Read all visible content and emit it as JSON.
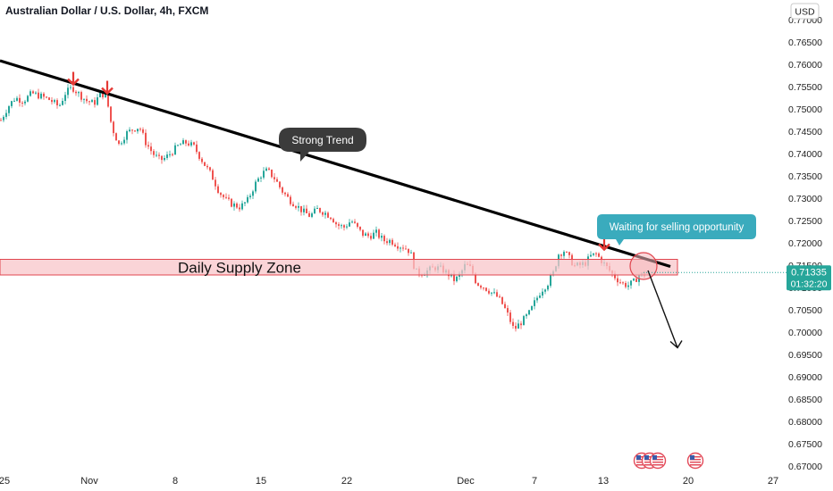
{
  "chart_data": {
    "type": "candlestick",
    "title": "Australian Dollar / U.S. Dollar, 4h, FXCM",
    "currency": "USD",
    "ylim": [
      0.67,
      0.774
    ],
    "y_ticks": [
      "0.77000",
      "0.76500",
      "0.76000",
      "0.75500",
      "0.75000",
      "0.74500",
      "0.74000",
      "0.73500",
      "0.73000",
      "0.72500",
      "0.72000",
      "0.71500",
      "0.71000",
      "0.70500",
      "0.70000",
      "0.69500",
      "0.69000",
      "0.68500",
      "0.68000",
      "0.67500",
      "0.67000"
    ],
    "x_ticks": [
      "25",
      "Nov",
      "8",
      "15",
      "22",
      "Dec",
      "7",
      "13",
      "20",
      "27"
    ],
    "last_price": "0.71335",
    "countdown": "01:32:20",
    "series_path": [
      [
        0,
        0.7475
      ],
      [
        8,
        0.7505
      ],
      [
        16,
        0.7525
      ],
      [
        25,
        0.7518
      ],
      [
        35,
        0.7535
      ],
      [
        45,
        0.7528
      ],
      [
        55,
        0.752
      ],
      [
        65,
        0.7505
      ],
      [
        72,
        0.7535
      ],
      [
        80,
        0.7548
      ],
      [
        88,
        0.7532
      ],
      [
        96,
        0.7518
      ],
      [
        104,
        0.7512
      ],
      [
        112,
        0.7535
      ],
      [
        118,
        0.7528
      ],
      [
        124,
        0.746
      ],
      [
        132,
        0.742
      ],
      [
        140,
        0.7445
      ],
      [
        148,
        0.7455
      ],
      [
        155,
        0.746
      ],
      [
        162,
        0.7425
      ],
      [
        170,
        0.74
      ],
      [
        178,
        0.7385
      ],
      [
        184,
        0.739
      ],
      [
        192,
        0.7405
      ],
      [
        200,
        0.742
      ],
      [
        208,
        0.7425
      ],
      [
        216,
        0.7415
      ],
      [
        222,
        0.7395
      ],
      [
        228,
        0.7375
      ],
      [
        236,
        0.735
      ],
      [
        244,
        0.7315
      ],
      [
        252,
        0.7295
      ],
      [
        260,
        0.7285
      ],
      [
        268,
        0.728
      ],
      [
        276,
        0.7295
      ],
      [
        284,
        0.733
      ],
      [
        292,
        0.7355
      ],
      [
        298,
        0.7362
      ],
      [
        306,
        0.7345
      ],
      [
        314,
        0.7318
      ],
      [
        322,
        0.7298
      ],
      [
        330,
        0.7285
      ],
      [
        338,
        0.727
      ],
      [
        346,
        0.726
      ],
      [
        354,
        0.7275
      ],
      [
        362,
        0.7268
      ],
      [
        370,
        0.7258
      ],
      [
        376,
        0.724
      ],
      [
        384,
        0.7235
      ],
      [
        392,
        0.725
      ],
      [
        398,
        0.7235
      ],
      [
        404,
        0.722
      ],
      [
        412,
        0.7215
      ],
      [
        420,
        0.7222
      ],
      [
        428,
        0.7205
      ],
      [
        436,
        0.7205
      ],
      [
        444,
        0.7195
      ],
      [
        452,
        0.719
      ],
      [
        458,
        0.718
      ],
      [
        464,
        0.7135
      ],
      [
        470,
        0.7132
      ],
      [
        478,
        0.7138
      ],
      [
        486,
        0.7145
      ],
      [
        494,
        0.714
      ],
      [
        502,
        0.7128
      ],
      [
        508,
        0.7115
      ],
      [
        514,
        0.713
      ],
      [
        520,
        0.7152
      ],
      [
        526,
        0.7142
      ],
      [
        532,
        0.711
      ],
      [
        540,
        0.7102
      ],
      [
        548,
        0.709
      ],
      [
        556,
        0.7078
      ],
      [
        562,
        0.706
      ],
      [
        568,
        0.7035
      ],
      [
        574,
        0.7005
      ],
      [
        580,
        0.7018
      ],
      [
        586,
        0.703
      ],
      [
        592,
        0.7045
      ],
      [
        598,
        0.707
      ],
      [
        604,
        0.7092
      ],
      [
        612,
        0.711
      ],
      [
        618,
        0.7132
      ],
      [
        624,
        0.7175
      ],
      [
        630,
        0.7182
      ],
      [
        636,
        0.7165
      ],
      [
        642,
        0.7148
      ],
      [
        648,
        0.715
      ],
      [
        654,
        0.7155
      ],
      [
        660,
        0.717
      ],
      [
        666,
        0.7175
      ],
      [
        672,
        0.716
      ],
      [
        678,
        0.7145
      ],
      [
        684,
        0.713
      ],
      [
        690,
        0.7118
      ],
      [
        696,
        0.7108
      ],
      [
        702,
        0.7105
      ],
      [
        708,
        0.7112
      ],
      [
        714,
        0.7128
      ],
      [
        720,
        0.713
      ]
    ],
    "downtrend_line": {
      "start": [
        0,
        0.7608
      ],
      "end": [
        750,
        0.7147
      ]
    },
    "supply_zone": {
      "label": "Daily Supply Zone",
      "top": 0.7163,
      "bottom": 0.7128
    },
    "reversal_markers": [
      [
        82,
        0.7555
      ],
      [
        120,
        0.7535
      ],
      [
        676,
        0.7185
      ]
    ],
    "annotations": {
      "strong_trend": "Strong Trend",
      "waiting": "Waiting for selling opportunity"
    },
    "event_icons": 4,
    "grid": false
  },
  "colors": {
    "up": "#26a69a",
    "down": "#ef5350",
    "trend_line": "#000000",
    "zone_fill": "#f8c5c9",
    "zone_border": "#e0464f",
    "callout_dark": "#3b3b3b",
    "callout_teal": "#3aabbd",
    "price_tag": "#26a69a",
    "marker": "#e53935"
  }
}
